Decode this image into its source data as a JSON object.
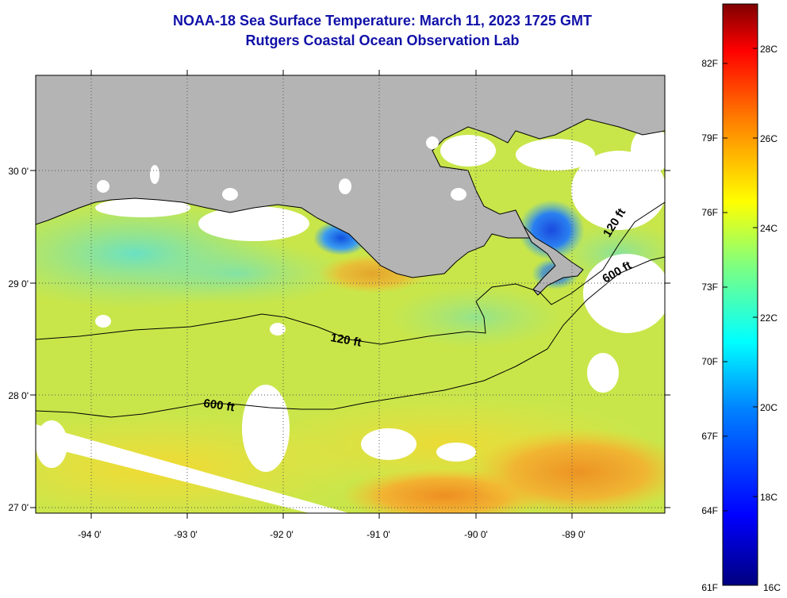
{
  "header": {
    "title": "NOAA-18 Sea Surface Temperature:  March 11, 2023 1725 GMT",
    "subtitle": "Rutgers Coastal Ocean Observation Lab"
  },
  "map": {
    "lon_range": [
      -94.6,
      -88.0
    ],
    "lat_range": [
      26.94,
      30.85
    ],
    "lon_ticks": [
      "-94 0'",
      "-93 0'",
      "-92 0'",
      "-91 0'",
      "-90 0'",
      "-89 0'"
    ],
    "lat_ticks": [
      "30 0'",
      "29 0'",
      "28 0'",
      "27 0'"
    ],
    "contour_labels": [
      "120 ft",
      "120 ft",
      "600 ft",
      "600 ft"
    ],
    "colors": {
      "land": "#b4b4b4",
      "cloud": "#ffffff",
      "water_base": "#c8e64a"
    }
  },
  "colorbar": {
    "fahrenheit_labels": [
      "82F",
      "79F",
      "76F",
      "73F",
      "70F",
      "67F",
      "64F",
      "61F"
    ],
    "celsius_labels": [
      "28C",
      "26C",
      "24C",
      "22C",
      "20C",
      "18C",
      "16C"
    ],
    "colors": [
      "#00007f",
      "#0000ff",
      "#007fff",
      "#00ffff",
      "#7fff7f",
      "#ffff00",
      "#ff7f00",
      "#ff0000",
      "#7f0000"
    ]
  }
}
